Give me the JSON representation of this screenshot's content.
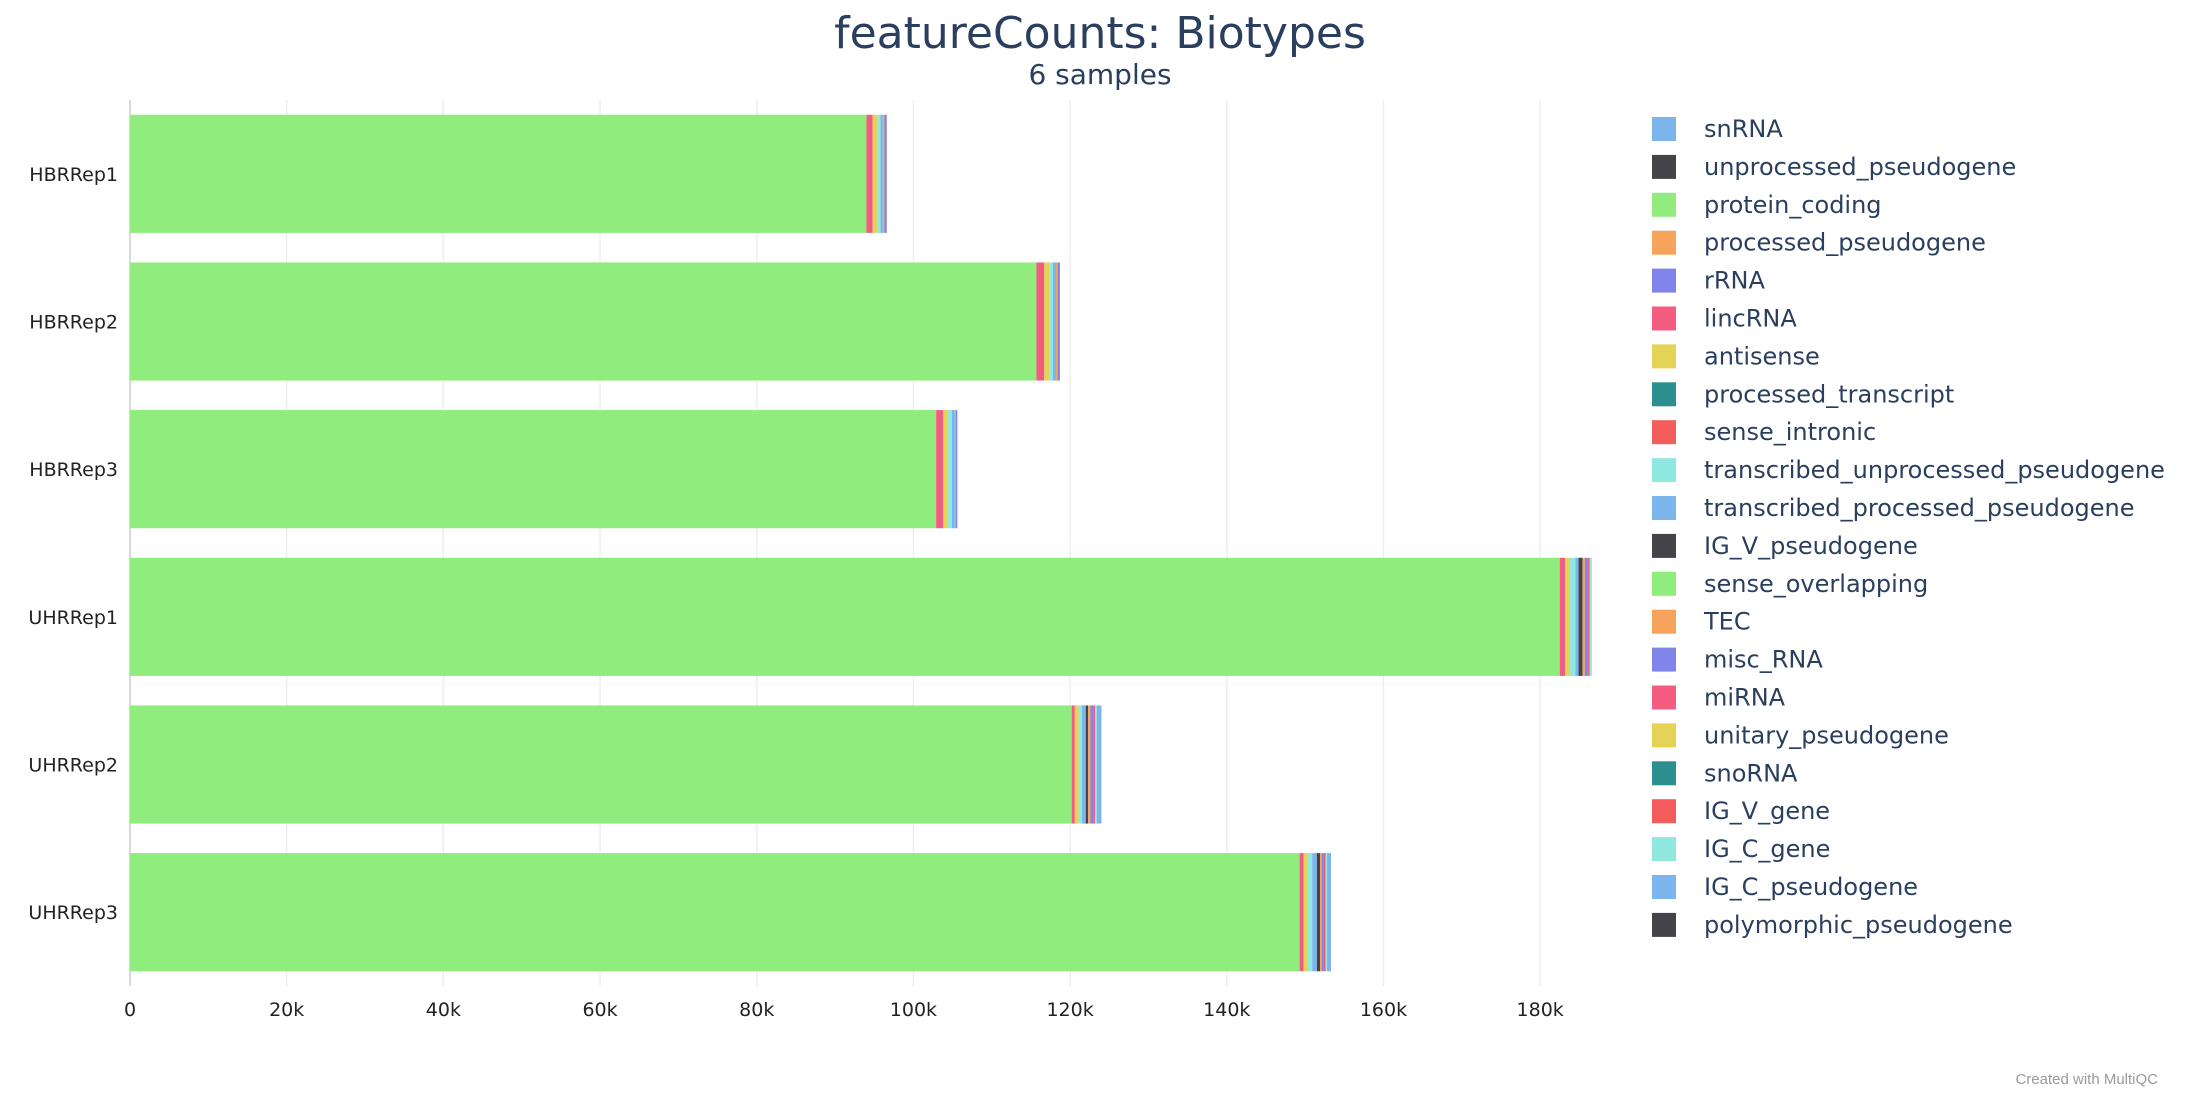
{
  "chart_data": {
    "type": "bar",
    "orientation": "horizontal",
    "stacked": true,
    "title": "featureCounts: Biotypes",
    "subtitle": "6 samples",
    "categories": [
      "HBRRep1",
      "HBRRep2",
      "HBRRep3",
      "UHRRep1",
      "UHRRep2",
      "UHRRep3"
    ],
    "x_ticks": [
      0,
      20000,
      40000,
      60000,
      80000,
      100000,
      120000,
      140000,
      160000,
      180000
    ],
    "x_tick_labels": [
      "0",
      "20k",
      "40k",
      "60k",
      "80k",
      "100k",
      "120k",
      "140k",
      "160k",
      "180k"
    ],
    "xlim": [
      0,
      187000
    ],
    "grid": true,
    "legend_position": "right",
    "series": [
      {
        "name": "snRNA",
        "color": "#7cb5ec",
        "values": [
          0,
          0,
          0,
          0,
          0,
          0
        ]
      },
      {
        "name": "unprocessed_pseudogene",
        "color": "#434348",
        "values": [
          0,
          0,
          0,
          0,
          0,
          0
        ]
      },
      {
        "name": "protein_coding",
        "color": "#90ed7d",
        "values": [
          94000,
          115700,
          102900,
          182500,
          120200,
          149300
        ]
      },
      {
        "name": "processed_pseudogene",
        "color": "#f7a35c",
        "values": [
          0,
          0,
          0,
          0,
          0,
          0
        ]
      },
      {
        "name": "rRNA",
        "color": "#8085e9",
        "values": [
          0,
          0,
          0,
          0,
          0,
          0
        ]
      },
      {
        "name": "lincRNA",
        "color": "#f15c80",
        "values": [
          800,
          1000,
          900,
          700,
          400,
          500
        ]
      },
      {
        "name": "antisense",
        "color": "#e4d354",
        "values": [
          600,
          700,
          600,
          600,
          500,
          500
        ]
      },
      {
        "name": "processed_transcript",
        "color": "#2b908f",
        "values": [
          0,
          0,
          0,
          0,
          0,
          0
        ]
      },
      {
        "name": "sense_intronic",
        "color": "#f45b5b",
        "values": [
          0,
          0,
          0,
          0,
          0,
          0
        ]
      },
      {
        "name": "transcribed_unprocessed_pseudogene",
        "color": "#91e8e1",
        "values": [
          400,
          400,
          500,
          700,
          400,
          600
        ]
      },
      {
        "name": "transcribed_processed_pseudogene",
        "color": "#7cb5ec",
        "values": [
          300,
          400,
          400,
          400,
          500,
          600
        ]
      },
      {
        "name": "IG_V_pseudogene",
        "color": "#434348",
        "values": [
          0,
          0,
          0,
          500,
          300,
          400
        ]
      },
      {
        "name": "sense_overlapping",
        "color": "#90ed7d",
        "values": [
          0,
          0,
          0,
          0,
          0,
          0
        ]
      },
      {
        "name": "TEC",
        "color": "#f7a35c",
        "values": [
          200,
          200,
          100,
          300,
          300,
          200
        ]
      },
      {
        "name": "misc_RNA",
        "color": "#8085e9",
        "values": [
          300,
          300,
          200,
          300,
          400,
          300
        ]
      },
      {
        "name": "miRNA",
        "color": "#f15c80",
        "values": [
          0,
          0,
          0,
          300,
          200,
          200
        ]
      },
      {
        "name": "unitary_pseudogene",
        "color": "#e4d354",
        "values": [
          0,
          0,
          0,
          0,
          0,
          0
        ]
      },
      {
        "name": "snoRNA",
        "color": "#2b908f",
        "values": [
          0,
          0,
          0,
          0,
          0,
          0
        ]
      },
      {
        "name": "IG_V_gene",
        "color": "#f45b5b",
        "values": [
          0,
          0,
          0,
          0,
          0,
          0
        ]
      },
      {
        "name": "IG_C_gene",
        "color": "#91e8e1",
        "values": [
          0,
          0,
          0,
          300,
          200,
          200
        ]
      },
      {
        "name": "IG_C_pseudogene",
        "color": "#7cb5ec",
        "values": [
          0,
          0,
          0,
          0,
          600,
          500
        ]
      },
      {
        "name": "polymorphic_pseudogene",
        "color": "#434348",
        "values": [
          0,
          0,
          0,
          0,
          0,
          0
        ]
      }
    ]
  },
  "credit": "Created with MultiQC"
}
